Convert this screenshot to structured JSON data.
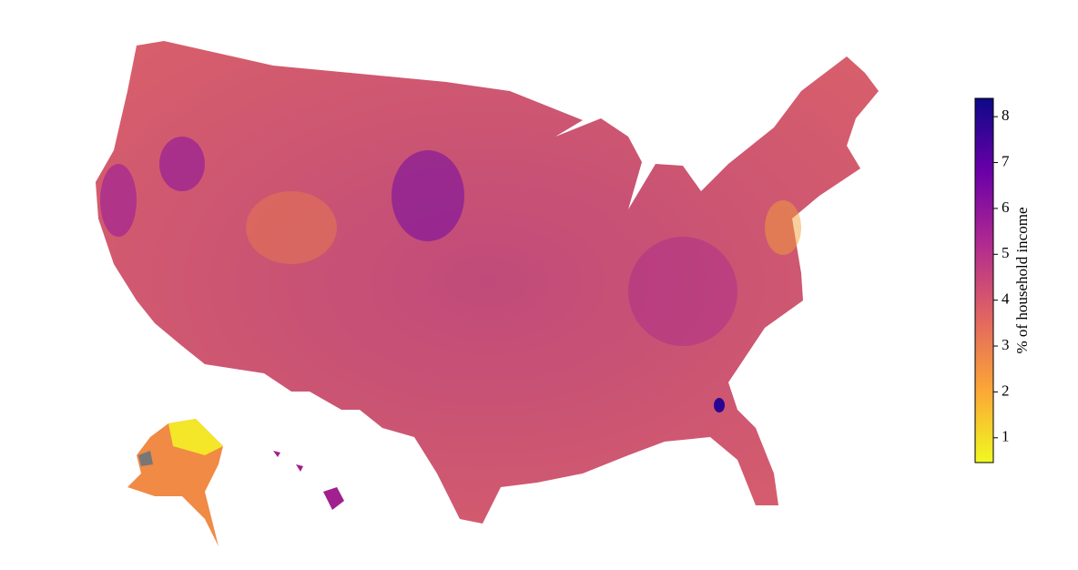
{
  "chart_data": {
    "type": "choropleth",
    "colorbar": {
      "label": "% of household income",
      "clim": [
        0.46,
        8.4
      ],
      "ticks": [
        1,
        2,
        3,
        4,
        5,
        6,
        7,
        8
      ],
      "colors": [
        "#f0f921",
        "#fca636",
        "#e16462",
        "#b12a90",
        "#6a00a8",
        "#0d0887"
      ]
    }
  }
}
